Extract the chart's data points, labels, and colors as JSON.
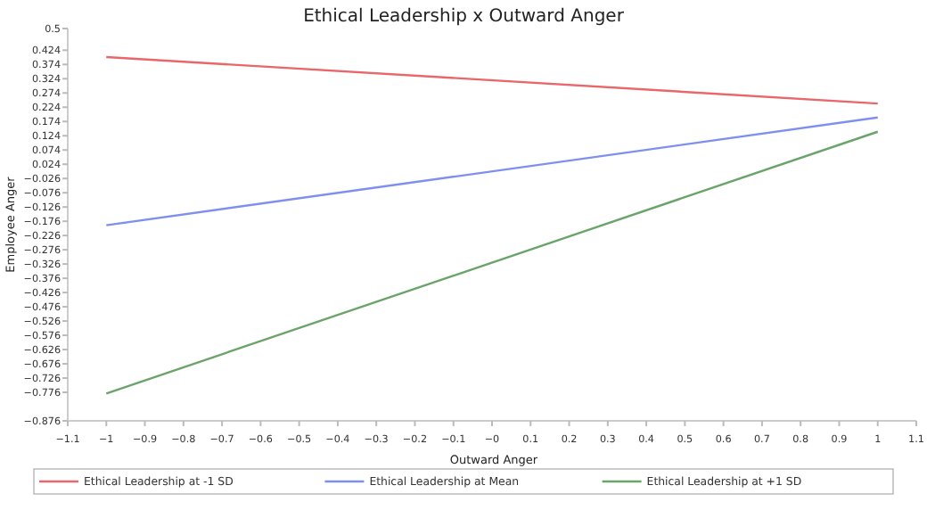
{
  "chart_data": {
    "type": "line",
    "title": "Ethical Leadership x Outward Anger",
    "xlabel": "Outward Anger",
    "ylabel": "Employee Anger",
    "x": [
      -1,
      1
    ],
    "series": [
      {
        "name": "Ethical Leadership at -1 SD",
        "color": "#e8676b",
        "values": [
          0.4,
          0.237
        ]
      },
      {
        "name": "Ethical Leadership at Mean",
        "color": "#7f8ff0",
        "values": [
          -0.19,
          0.188
        ]
      },
      {
        "name": "Ethical Leadership at +1 SD",
        "color": "#6aa46a",
        "values": [
          -0.78,
          0.138
        ]
      }
    ],
    "xlim": [
      -1.1,
      1.1
    ],
    "xticks": [
      {
        "value": -1.1,
        "label": "−1.1"
      },
      {
        "value": -1,
        "label": "−1"
      },
      {
        "value": -0.9,
        "label": "−0.9"
      },
      {
        "value": -0.8,
        "label": "−0.8"
      },
      {
        "value": -0.7,
        "label": "−0.7"
      },
      {
        "value": -0.6,
        "label": "−0.6"
      },
      {
        "value": -0.5,
        "label": "−0.5"
      },
      {
        "value": -0.4,
        "label": "−0.4"
      },
      {
        "value": -0.3,
        "label": "−0.3"
      },
      {
        "value": -0.2,
        "label": "−0.2"
      },
      {
        "value": -0.1,
        "label": "−0.1"
      },
      {
        "value": 0,
        "label": "−0"
      },
      0.1,
      0.2,
      0.3,
      0.4,
      0.5,
      0.6,
      0.7,
      0.8,
      0.9,
      1,
      1.1
    ],
    "ylim": [
      -0.876,
      0.5
    ],
    "yticks": [
      0.5,
      0.424,
      0.374,
      0.324,
      0.274,
      0.224,
      0.174,
      0.124,
      0.074,
      0.024,
      {
        "value": -0.026,
        "label": "−0.026"
      },
      {
        "value": -0.076,
        "label": "−0.076"
      },
      {
        "value": -0.126,
        "label": "−0.126"
      },
      {
        "value": -0.176,
        "label": "−0.176"
      },
      {
        "value": -0.226,
        "label": "−0.226"
      },
      {
        "value": -0.276,
        "label": "−0.276"
      },
      {
        "value": -0.326,
        "label": "−0.326"
      },
      {
        "value": -0.376,
        "label": "−0.376"
      },
      {
        "value": -0.426,
        "label": "−0.426"
      },
      {
        "value": -0.476,
        "label": "−0.476"
      },
      {
        "value": -0.526,
        "label": "−0.526"
      },
      {
        "value": -0.576,
        "label": "−0.576"
      },
      {
        "value": -0.626,
        "label": "−0.626"
      },
      {
        "value": -0.676,
        "label": "−0.676"
      },
      {
        "value": -0.726,
        "label": "−0.726"
      },
      {
        "value": -0.776,
        "label": "−0.776"
      },
      {
        "value": -0.876,
        "label": "−0.876"
      }
    ],
    "legend": "bottom",
    "grid": false,
    "marker": "none",
    "line_style": "solid"
  }
}
